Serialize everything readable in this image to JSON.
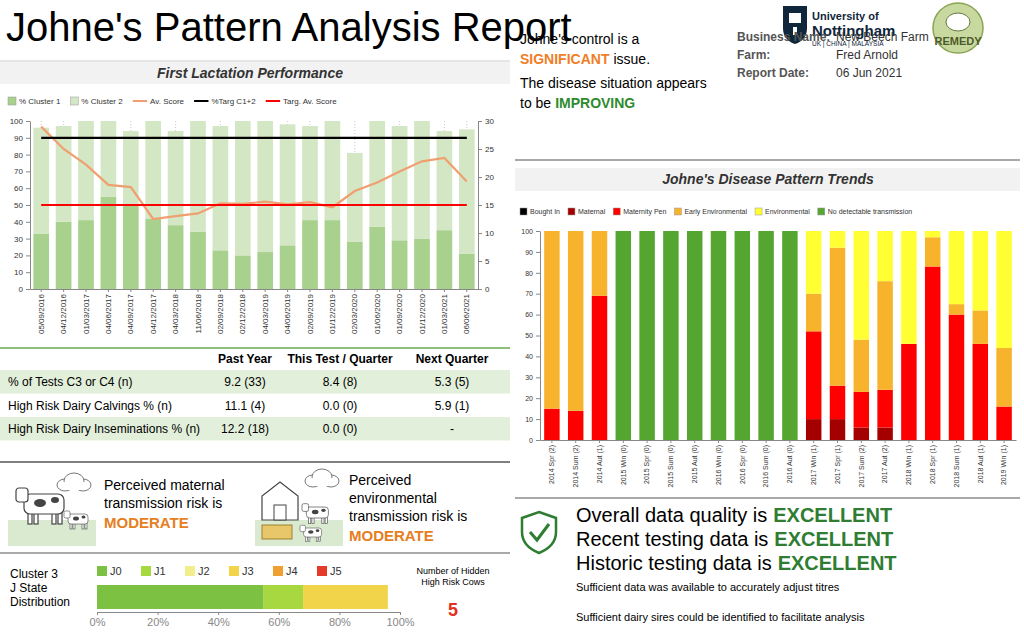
{
  "header": {
    "title": "Johne's Pattern Analysis Report",
    "university": [
      "University of",
      "Nottingham"
    ],
    "campuses": "UK | CHINA | MALAYSIA",
    "partner": "REMEDY"
  },
  "summary": {
    "control": [
      "Johne's control is a",
      "SIGNIFICANT",
      "issue."
    ],
    "trend": [
      "The disease situation appears",
      "to be",
      "IMPROVING"
    ]
  },
  "farm": {
    "labels": [
      "Business Name:",
      "Farm:",
      "Report Date:"
    ],
    "values": [
      "New Beech Farm",
      "Fred Arnold",
      "06 Jun 2021"
    ]
  },
  "chart_data": [
    {
      "type": "bar",
      "title": "First Lactation Performance",
      "categories": [
        "05/09/2016",
        "04/12/2016",
        "01/03/2017",
        "04/06/2017",
        "04/09/2017",
        "04/12/2017",
        "04/03/2018",
        "11/06/2018",
        "02/09/2018",
        "02/12/2018",
        "04/03/2019",
        "04/06/2019",
        "02/09/2019",
        "01/12/2019",
        "02/03/2020",
        "01/06/2020",
        "01/09/2020",
        "01/12/2020",
        "01/03/2021",
        "06/06/2021"
      ],
      "series": [
        {
          "name": "% Cluster 1",
          "type": "bar",
          "color": "#a9d18e",
          "values": [
            33,
            40,
            41,
            55,
            50,
            42,
            38,
            34,
            23,
            20,
            22,
            26,
            41,
            41,
            28,
            37,
            29,
            30,
            35,
            21
          ]
        },
        {
          "name": "% Cluster 2",
          "type": "bar",
          "color": "#d3e7c4",
          "values": [
            63,
            57,
            59,
            45,
            44,
            58,
            56,
            66,
            74,
            80,
            78,
            72,
            56,
            59,
            53,
            63,
            68,
            70,
            59,
            74
          ]
        },
        {
          "name": "Av. Score",
          "type": "line",
          "axis": "y2",
          "color": "#f0a070",
          "values": [
            29,
            25,
            22.2,
            18.6,
            18.2,
            12.5,
            13,
            13.5,
            15.3,
            15.2,
            15.6,
            15.1,
            15.5,
            14.6,
            17.5,
            19,
            21,
            22.8,
            23.4,
            19.2
          ]
        },
        {
          "name": "%Targ C1+2",
          "type": "line",
          "color": "#000000",
          "values": [
            90,
            90,
            90,
            90,
            90,
            90,
            90,
            90,
            90,
            90,
            90,
            90,
            90,
            90,
            90,
            90,
            90,
            90,
            90,
            90
          ]
        },
        {
          "name": "Targ. Av. Score",
          "type": "line",
          "axis": "y2",
          "color": "#ff0000",
          "values": [
            15,
            15,
            15,
            15,
            15,
            15,
            15,
            15,
            15,
            15,
            15,
            15,
            15,
            15,
            15,
            15,
            15,
            15,
            15,
            15
          ]
        }
      ],
      "stacked": true,
      "ylim": [
        0,
        100
      ],
      "yticks": [
        0,
        10,
        20,
        30,
        40,
        50,
        60,
        70,
        80,
        90,
        100
      ],
      "y2lim": [
        0,
        30
      ],
      "y2ticks": [
        0,
        5,
        10,
        15,
        20,
        25,
        30
      ],
      "grid": true,
      "legend": "top"
    },
    {
      "type": "bar",
      "title": "Johne's Disease Pattern Trends",
      "categories": [
        "2014 Spr (2)",
        "2014 Sum (2)",
        "2014 Aut (1)",
        "2015 Win (0)",
        "2015 Spr (0)",
        "2015 Sum (0)",
        "2015 Aut (0)",
        "2016 Win (0)",
        "2016 Spr (0)",
        "2016 Sum (0)",
        "2016 Aut (0)",
        "2017 Win (1)",
        "2017 Spr (1)",
        "2017 Sum (2)",
        "2017 Aut (2)",
        "2018 Win (1)",
        "2018 Spr (1)",
        "2018 Sum (1)",
        "2018 Aut (1)",
        "2019 Win (1)"
      ],
      "series": [
        {
          "name": "Bought In",
          "color": "#000000",
          "values": [
            0,
            0,
            0,
            0,
            0,
            0,
            0,
            0,
            0,
            0,
            0,
            0,
            0,
            0,
            0,
            0,
            0,
            0,
            0,
            0
          ]
        },
        {
          "name": "Maternal",
          "color": "#a50000",
          "values": [
            0,
            0,
            0,
            0,
            0,
            0,
            0,
            0,
            0,
            0,
            0,
            10,
            10,
            6,
            6,
            0,
            0,
            0,
            0,
            0
          ]
        },
        {
          "name": "Maternity Pen",
          "color": "#ff0000",
          "values": [
            15,
            14,
            69,
            0,
            0,
            0,
            0,
            0,
            0,
            0,
            0,
            42,
            16,
            17,
            18,
            46,
            83,
            60,
            46,
            16
          ]
        },
        {
          "name": "Early Environmental",
          "color": "#f7b32b",
          "values": [
            85,
            86,
            31,
            0,
            0,
            0,
            0,
            0,
            0,
            0,
            0,
            18,
            66,
            25,
            52,
            0,
            14,
            5,
            16,
            28
          ]
        },
        {
          "name": "Environmental",
          "color": "#ffff33",
          "values": [
            0,
            0,
            0,
            0,
            0,
            0,
            0,
            0,
            0,
            0,
            0,
            30,
            8,
            52,
            24,
            54,
            3,
            35,
            38,
            56
          ]
        },
        {
          "name": "No detectable transmission",
          "color": "#55a630",
          "values": [
            0,
            0,
            0,
            100,
            100,
            100,
            100,
            100,
            100,
            100,
            100,
            0,
            0,
            0,
            0,
            0,
            0,
            0,
            0,
            0
          ]
        }
      ],
      "stacked": true,
      "ylim": [
        0,
        100
      ],
      "yticks": [
        0,
        10,
        20,
        30,
        40,
        50,
        60,
        70,
        80,
        90,
        100
      ],
      "grid": true,
      "legend": "top"
    },
    {
      "type": "bar",
      "orientation": "horizontal",
      "stacked": true,
      "title": [
        "Cluster 3",
        "J State",
        "Distribution"
      ],
      "series": [
        {
          "name": "J0",
          "color": "#7cc142",
          "values": [
            55
          ]
        },
        {
          "name": "J1",
          "color": "#a8d840",
          "values": [
            13
          ]
        },
        {
          "name": "J2",
          "color": "#f3ee8c",
          "values": [
            0
          ]
        },
        {
          "name": "J3",
          "color": "#f2d44a",
          "values": [
            28
          ]
        },
        {
          "name": "J4",
          "color": "#f0a030",
          "values": [
            0
          ]
        },
        {
          "name": "J5",
          "color": "#e5392b",
          "values": [
            0
          ]
        }
      ],
      "xlim": [
        0,
        100
      ],
      "xticks": [
        {
          "value": 0,
          "label": "0%"
        },
        {
          "value": 20,
          "label": "20%"
        },
        {
          "value": 40,
          "label": "40%"
        },
        {
          "value": 60,
          "label": "60%"
        },
        {
          "value": 80,
          "label": "80%"
        },
        {
          "value": 100,
          "label": "100%"
        }
      ],
      "legend": "top",
      "tick_labels": "x"
    }
  ],
  "table": {
    "columns": [
      "Past Year",
      "This Test / Quarter",
      "Next Quarter"
    ],
    "rows": [
      [
        "% of Tests C3 or C4 (n)",
        "9.2 (33)",
        "8.4 (8)",
        "5.3 (5)"
      ],
      [
        "High Risk Dairy Calvings % (n)",
        "11.1 (4)",
        "0.0 (0)",
        "5.9 (1)"
      ],
      [
        "High Risk Dairy Inseminations % (n)",
        "12.2 (18)",
        "0.0 (0)",
        "-"
      ]
    ]
  },
  "risks": [
    {
      "lines": [
        "Perceived maternal",
        "transmission risk is"
      ],
      "level": "MODERATE"
    },
    {
      "lines": [
        "Perceived",
        "environmental",
        "transmission risk is"
      ],
      "level": "MODERATE"
    }
  ],
  "hidden_high_risk": {
    "label": [
      "Number of Hidden",
      "High Risk Cows"
    ],
    "value": 5
  },
  "quality": {
    "items": [
      {
        "text": "Overall data quality is",
        "level": "EXCELLENT"
      },
      {
        "text": "Recent testing data is",
        "level": "EXCELLENT"
      },
      {
        "text": "Historic testing data is",
        "level": "EXCELLENT"
      }
    ],
    "notes": [
      "Sufficient data was available to accurately adjust titres",
      "Sufficient dairy sires could be identified to facilitate analysis"
    ]
  }
}
